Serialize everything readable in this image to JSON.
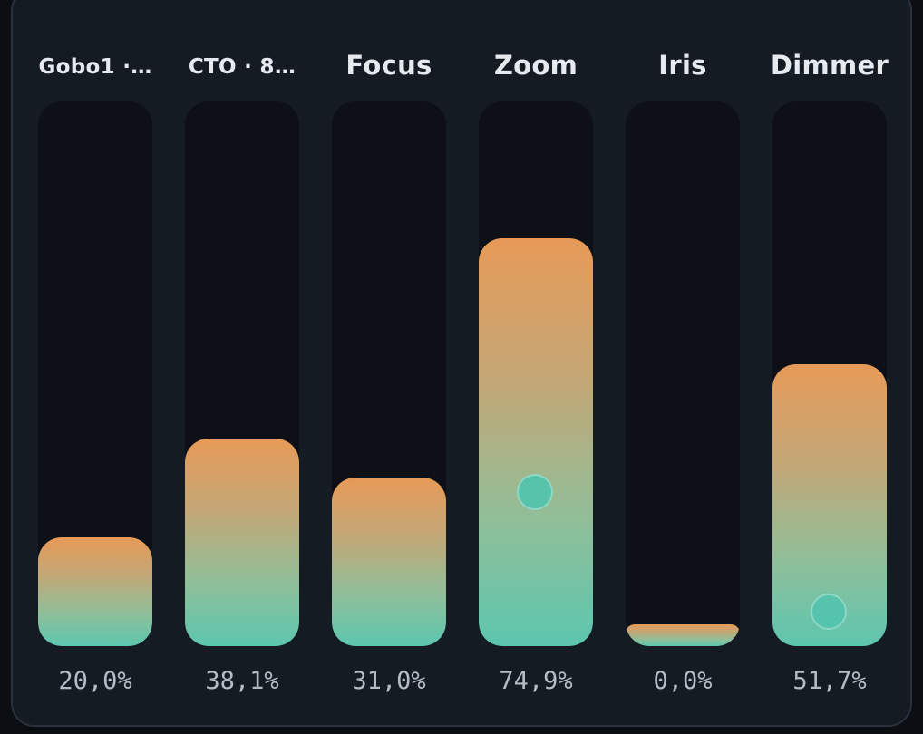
{
  "faders": [
    {
      "label": "Gobo1 ·…",
      "value_text": "20,0%",
      "level": 0.2,
      "knob_level": null
    },
    {
      "label": "CTO · 8…",
      "value_text": "38,1%",
      "level": 0.381,
      "knob_level": null
    },
    {
      "label": "Focus",
      "value_text": "31,0%",
      "level": 0.31,
      "knob_level": null
    },
    {
      "label": "Zoom",
      "value_text": "74,9%",
      "level": 0.749,
      "knob_level": 0.27
    },
    {
      "label": "Iris",
      "value_text": "0,0%",
      "level": 0.0,
      "knob_level": null
    },
    {
      "label": "Dimmer",
      "value_text": "51,7%",
      "level": 0.517,
      "knob_level": 0.05
    }
  ],
  "colors": {
    "fill_top": "#e79a58",
    "fill_bottom": "#5cc6ae",
    "knob": "#55c4ad",
    "panel": "#151b23",
    "track": "#0d1117"
  }
}
